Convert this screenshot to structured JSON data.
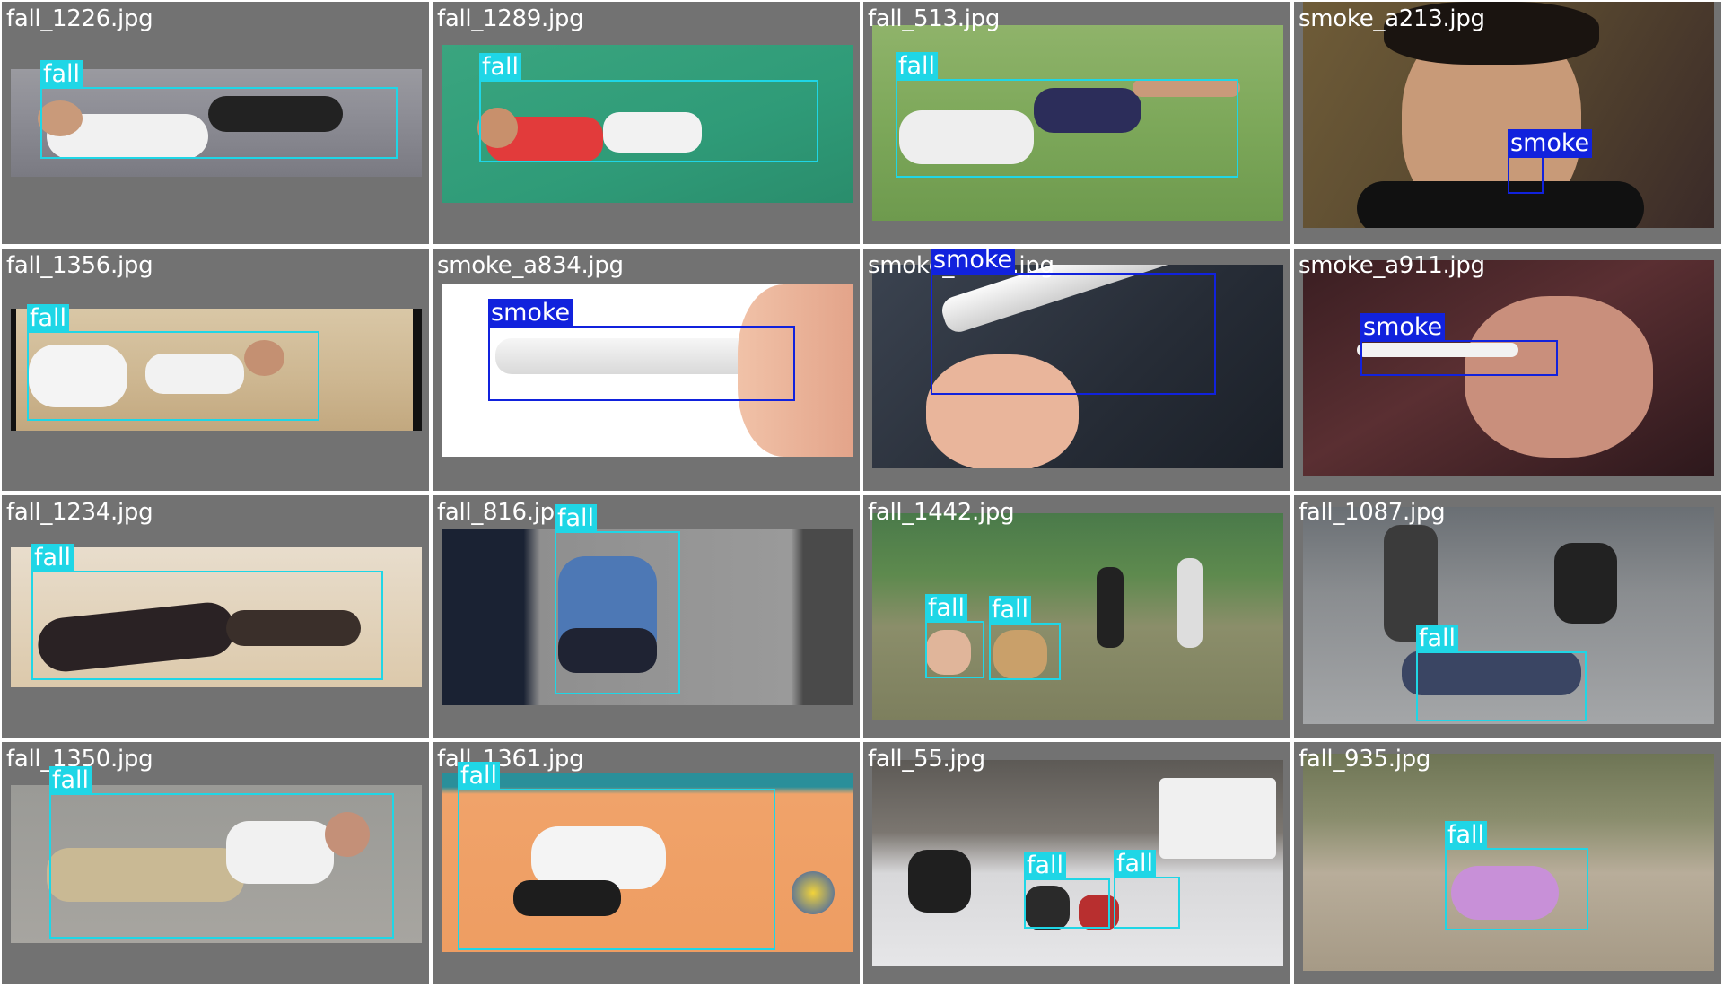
{
  "tiles": [
    {
      "filename": "fall_1226.jpg",
      "boxes": [
        {
          "label": "fall"
        }
      ]
    },
    {
      "filename": "fall_1289.jpg",
      "boxes": [
        {
          "label": "fall"
        }
      ]
    },
    {
      "filename": "fall_513.jpg",
      "boxes": [
        {
          "label": "fall"
        }
      ]
    },
    {
      "filename": "smoke_a213.jpg",
      "boxes": [
        {
          "label": "smoke"
        }
      ]
    },
    {
      "filename": "fall_1356.jpg",
      "boxes": [
        {
          "label": "fall"
        }
      ]
    },
    {
      "filename": "smoke_a834.jpg",
      "boxes": [
        {
          "label": "smoke"
        }
      ]
    },
    {
      "filename": "smoke_a823.jpg",
      "boxes": [
        {
          "label": "smoke"
        }
      ]
    },
    {
      "filename": "smoke_a911.jpg",
      "boxes": [
        {
          "label": "smoke"
        }
      ]
    },
    {
      "filename": "fall_1234.jpg",
      "boxes": [
        {
          "label": "fall"
        }
      ]
    },
    {
      "filename": "fall_816.jpg",
      "boxes": [
        {
          "label": "fall"
        }
      ]
    },
    {
      "filename": "fall_1442.jpg",
      "boxes": [
        {
          "label": "fall"
        },
        {
          "label": "fall"
        }
      ]
    },
    {
      "filename": "fall_1087.jpg",
      "boxes": [
        {
          "label": "fall"
        }
      ]
    },
    {
      "filename": "fall_1350.jpg",
      "boxes": [
        {
          "label": "fall"
        }
      ]
    },
    {
      "filename": "fall_1361.jpg",
      "boxes": [
        {
          "label": "fall"
        }
      ]
    },
    {
      "filename": "fall_55.jpg",
      "boxes": [
        {
          "label": "fall"
        },
        {
          "label": "fall"
        }
      ]
    },
    {
      "filename": "fall_935.jpg",
      "boxes": [
        {
          "label": "fall"
        }
      ]
    }
  ],
  "colors": {
    "fall": "#1fd6e6",
    "smoke": "#1122dd",
    "tile_bg": "#727272"
  }
}
